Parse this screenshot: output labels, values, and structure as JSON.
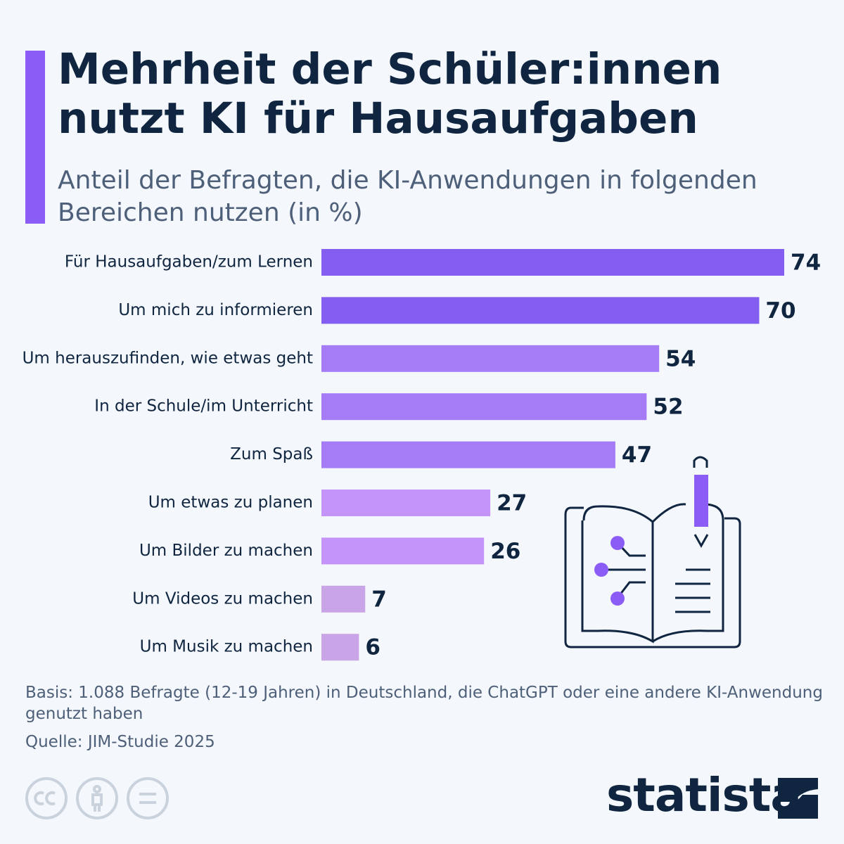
{
  "chart_data": {
    "type": "hbar",
    "title": "Mehrheit der Schüler:innen nutzt KI für Hausaufgaben",
    "subtitle": "Anteil der Befragten, die KI-Anwendungen in folgenden Bereichen nutzen (in %)",
    "categories": [
      "Für Hausaufgaben/zum Lernen",
      "Um mich zu informieren",
      "Um herauszufinden, wie etwas geht",
      "In der Schule/im Unterricht",
      "Zum Spaß",
      "Um etwas zu planen",
      "Um Bilder zu machen",
      "Um Videos zu machen",
      "Um Musik zu machen"
    ],
    "values": [
      74,
      70,
      54,
      52,
      47,
      27,
      26,
      7,
      6
    ],
    "colors": [
      "#845ef0",
      "#845ef0",
      "#a57cf6",
      "#a57cf6",
      "#a57cf6",
      "#c594fa",
      "#c594fa",
      "#c9a4e6",
      "#c9a4e6"
    ],
    "notes": [
      "Basis: 1.088 Befragte (12-19 Jahren) in Deutschland, die ChatGPT oder eine andere KI-Anwendung genutzt haben",
      "Quelle: JIM-Studie 2025"
    ],
    "brand": "statista"
  }
}
